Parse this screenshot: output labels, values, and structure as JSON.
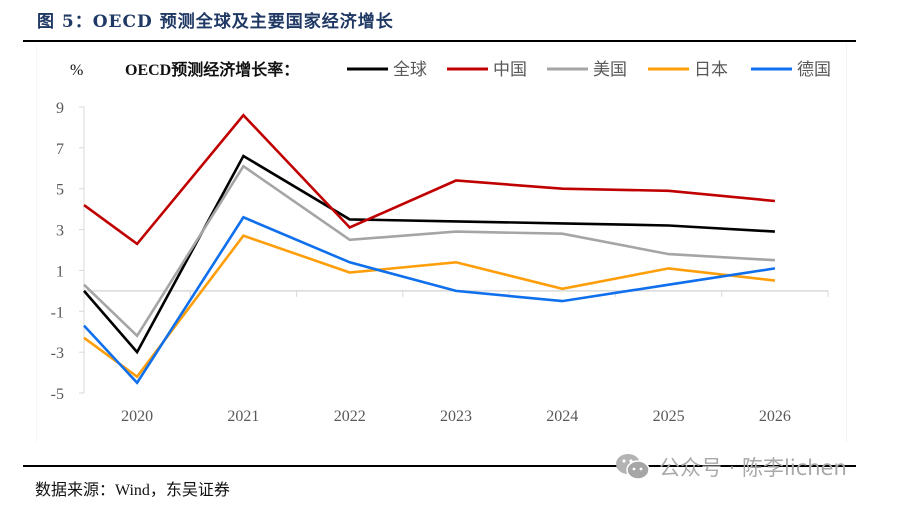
{
  "header": {
    "title": "图 5：OECD 预测全球及主要国家经济增长"
  },
  "footer": {
    "source": "数据来源：Wind，东吴证券",
    "watermark": "公众号 · 陈李lichen",
    "watermark_icon": "wechat-icon"
  },
  "chart_data": {
    "type": "line",
    "title": "OECD预测经济增长率：",
    "ylabel": "%",
    "xlabel": "",
    "categories": [
      "2020",
      "2021",
      "2022",
      "2023",
      "2024",
      "2025",
      "2026"
    ],
    "ylim": [
      -5,
      9
    ],
    "yticks": [
      "9",
      "7",
      "5",
      "3",
      "1",
      "-1",
      "-3",
      "-5"
    ],
    "ytick_values": [
      9,
      7,
      5,
      3,
      1,
      -1,
      -3,
      -5
    ],
    "grid": false,
    "legend_position": "top",
    "series": [
      {
        "name": "全球",
        "color": "#000000",
        "left_edge_value": 0.0,
        "values": [
          -3.0,
          6.6,
          3.5,
          3.4,
          3.3,
          3.2,
          2.9
        ]
      },
      {
        "name": "中国",
        "color": "#c00000",
        "left_edge_value": 4.2,
        "values": [
          2.3,
          8.6,
          3.1,
          5.4,
          5.0,
          4.9,
          4.4
        ]
      },
      {
        "name": "美国",
        "color": "#a5a5a5",
        "left_edge_value": 0.3,
        "values": [
          -2.2,
          6.1,
          2.5,
          2.9,
          2.8,
          1.8,
          1.5
        ]
      },
      {
        "name": "日本",
        "color": "#ff9e0b",
        "left_edge_value": -2.3,
        "values": [
          -4.2,
          2.7,
          0.9,
          1.4,
          0.1,
          1.1,
          0.5
        ]
      },
      {
        "name": "德国",
        "color": "#0f6fec",
        "left_edge_value": -1.7,
        "values": [
          -4.5,
          3.6,
          1.4,
          0.0,
          -0.5,
          0.3,
          1.1
        ]
      }
    ]
  }
}
